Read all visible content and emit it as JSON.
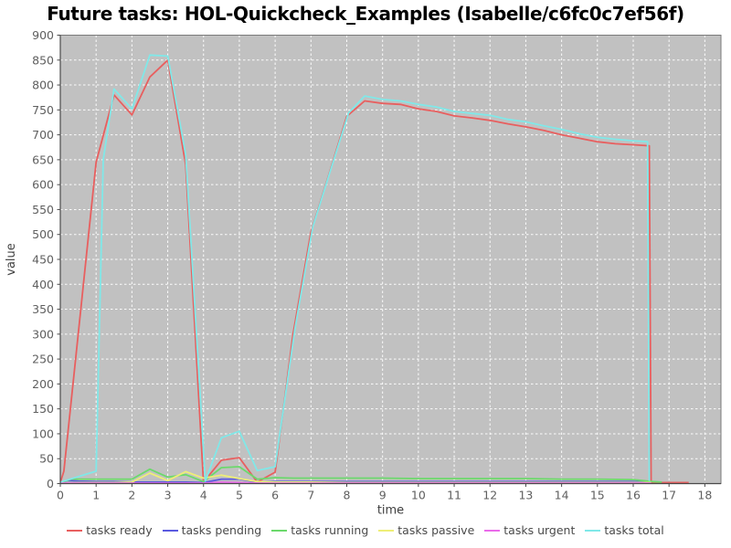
{
  "chart_data": {
    "type": "line",
    "title": "Future tasks: HOL-Quickcheck_Examples (Isabelle/c6fc0c7ef56f)",
    "xlabel": "time",
    "ylabel": "value",
    "xlim": [
      0,
      18.45
    ],
    "ylim": [
      0,
      900
    ],
    "x_ticks": [
      0,
      1,
      2,
      3,
      4,
      5,
      6,
      7,
      8,
      9,
      10,
      11,
      12,
      13,
      14,
      15,
      16,
      17,
      18
    ],
    "y_ticks": [
      0,
      50,
      100,
      150,
      200,
      250,
      300,
      350,
      400,
      450,
      500,
      550,
      600,
      650,
      700,
      750,
      800,
      850,
      900
    ],
    "grid": true,
    "legend_position": "bottom",
    "colors": {
      "plot_background": "#c1c1c1",
      "grid_line": "#ffffff",
      "plot_border": "#7a7a7a",
      "axis_line": "#4a4a4a"
    },
    "series": [
      {
        "name": "tasks ready",
        "color": "#e85f5f",
        "points": [
          [
            0,
            2
          ],
          [
            0.1,
            25
          ],
          [
            0.5,
            300
          ],
          [
            1,
            645
          ],
          [
            1.5,
            780
          ],
          [
            2,
            740
          ],
          [
            2.5,
            816
          ],
          [
            3,
            850
          ],
          [
            3.5,
            640
          ],
          [
            4,
            3
          ],
          [
            4.5,
            47
          ],
          [
            5,
            52
          ],
          [
            5.5,
            3
          ],
          [
            6,
            23
          ],
          [
            6.5,
            300
          ],
          [
            7,
            505
          ],
          [
            7.5,
            620
          ],
          [
            8,
            737
          ],
          [
            8.5,
            768
          ],
          [
            9,
            763
          ],
          [
            9.5,
            761
          ],
          [
            10,
            752
          ],
          [
            10.5,
            747
          ],
          [
            11,
            738
          ],
          [
            11.5,
            734
          ],
          [
            12,
            729
          ],
          [
            12.5,
            722
          ],
          [
            13,
            716
          ],
          [
            13.5,
            709
          ],
          [
            14,
            700
          ],
          [
            14.5,
            693
          ],
          [
            15,
            686
          ],
          [
            15.5,
            682
          ],
          [
            16,
            680
          ],
          [
            16.45,
            678
          ],
          [
            16.5,
            2
          ],
          [
            17,
            2
          ],
          [
            17.55,
            2
          ]
        ]
      },
      {
        "name": "tasks pending",
        "color": "#5a5ae0",
        "points": [
          [
            0,
            2
          ],
          [
            0.2,
            6
          ],
          [
            0.5,
            5
          ],
          [
            1,
            4
          ],
          [
            1.5,
            4
          ],
          [
            2,
            3
          ],
          [
            2.5,
            3
          ],
          [
            3,
            3
          ],
          [
            3.5,
            3
          ],
          [
            4,
            2
          ],
          [
            4.5,
            9
          ],
          [
            5,
            9
          ],
          [
            5.5,
            3
          ],
          [
            6,
            4
          ],
          [
            7,
            4
          ],
          [
            8,
            4
          ],
          [
            9,
            4
          ],
          [
            10,
            4
          ],
          [
            11,
            4
          ],
          [
            12,
            4
          ],
          [
            13,
            4
          ],
          [
            14,
            4
          ],
          [
            15,
            4
          ],
          [
            16,
            4
          ],
          [
            16.5,
            3
          ]
        ]
      },
      {
        "name": "tasks running",
        "color": "#6cd96c",
        "points": [
          [
            0,
            2
          ],
          [
            0.3,
            9
          ],
          [
            1,
            9
          ],
          [
            1.5,
            9
          ],
          [
            2,
            9
          ],
          [
            2.5,
            29
          ],
          [
            3,
            13
          ],
          [
            3.5,
            18
          ],
          [
            4,
            4
          ],
          [
            4.5,
            32
          ],
          [
            5,
            34
          ],
          [
            5.5,
            9
          ],
          [
            6,
            12
          ],
          [
            6.5,
            11
          ],
          [
            7,
            11
          ],
          [
            8,
            11
          ],
          [
            9,
            11
          ],
          [
            10,
            10
          ],
          [
            11,
            10
          ],
          [
            12,
            10
          ],
          [
            13,
            10
          ],
          [
            14,
            9
          ],
          [
            15,
            9
          ],
          [
            16,
            8
          ],
          [
            16.55,
            4
          ],
          [
            16.8,
            3
          ]
        ]
      },
      {
        "name": "tasks passive",
        "color": "#eeee77",
        "points": [
          [
            0,
            1
          ],
          [
            0.5,
            2
          ],
          [
            1,
            2
          ],
          [
            1.5,
            2
          ],
          [
            2,
            3
          ],
          [
            2.5,
            21
          ],
          [
            3,
            6
          ],
          [
            3.5,
            24
          ],
          [
            4,
            11
          ],
          [
            4.5,
            17
          ],
          [
            5,
            10
          ],
          [
            5.5,
            4
          ],
          [
            6,
            3
          ],
          [
            7,
            3
          ],
          [
            8,
            2
          ],
          [
            9,
            2
          ],
          [
            10,
            2
          ],
          [
            11,
            2
          ],
          [
            12,
            2
          ],
          [
            13,
            2
          ],
          [
            14,
            2
          ],
          [
            15,
            2
          ],
          [
            16,
            2
          ],
          [
            16.5,
            2
          ]
        ]
      },
      {
        "name": "tasks urgent",
        "color": "#ea6bea",
        "points": [
          [
            0,
            1
          ],
          [
            1,
            1
          ],
          [
            2,
            1
          ],
          [
            3,
            1
          ],
          [
            4,
            1
          ],
          [
            4.5,
            3
          ],
          [
            5,
            2
          ],
          [
            5.5,
            1
          ],
          [
            6,
            1
          ],
          [
            8,
            1
          ],
          [
            10,
            1
          ],
          [
            12,
            1
          ],
          [
            14,
            1
          ],
          [
            16,
            1
          ],
          [
            16.5,
            1
          ]
        ]
      },
      {
        "name": "tasks total",
        "color": "#80e8e8",
        "points": [
          [
            0,
            3
          ],
          [
            1,
            25
          ],
          [
            1.2,
            650
          ],
          [
            1.5,
            792
          ],
          [
            2,
            752
          ],
          [
            2.5,
            860
          ],
          [
            3,
            858
          ],
          [
            3.5,
            660
          ],
          [
            4.05,
            5
          ],
          [
            4.5,
            92
          ],
          [
            5,
            105
          ],
          [
            5.5,
            26
          ],
          [
            6,
            34
          ],
          [
            6.55,
            310
          ],
          [
            7.05,
            515
          ],
          [
            7.55,
            630
          ],
          [
            8.05,
            744
          ],
          [
            8.5,
            778
          ],
          [
            9,
            771
          ],
          [
            9.5,
            768
          ],
          [
            10,
            761
          ],
          [
            10.5,
            756
          ],
          [
            11,
            747
          ],
          [
            11.5,
            743
          ],
          [
            12,
            739
          ],
          [
            12.5,
            731
          ],
          [
            13,
            726
          ],
          [
            13.5,
            718
          ],
          [
            14,
            711
          ],
          [
            14.5,
            702
          ],
          [
            15,
            695
          ],
          [
            15.5,
            691
          ],
          [
            16,
            688
          ],
          [
            16.4,
            686
          ],
          [
            16.45,
            5
          ]
        ]
      }
    ]
  }
}
